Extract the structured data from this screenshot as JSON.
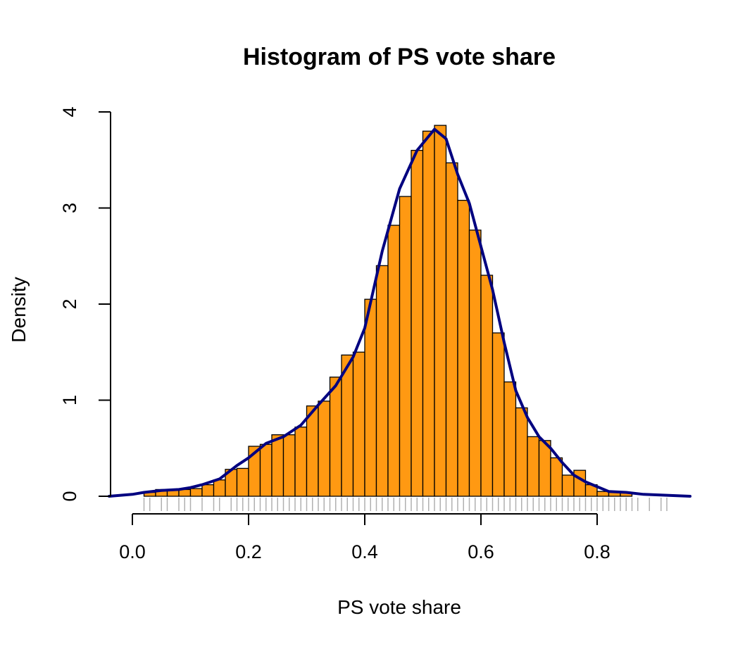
{
  "chart_data": {
    "type": "bar",
    "title": "Histogram of PS vote share",
    "xlabel": "PS vote share",
    "ylabel": "Density",
    "xlim": [
      -0.04,
      0.96
    ],
    "ylim": [
      0,
      4
    ],
    "xticks": [
      0.0,
      0.2,
      0.4,
      0.6,
      0.8
    ],
    "xtick_labels": [
      "0.0",
      "0.2",
      "0.4",
      "0.6",
      "0.8"
    ],
    "yticks": [
      0,
      1,
      2,
      3,
      4
    ],
    "ytick_labels": [
      "0",
      "1",
      "2",
      "3",
      "4"
    ],
    "bin_width": 0.02,
    "bin_start": 0.02,
    "values": [
      0.04,
      0.07,
      0.06,
      0.07,
      0.08,
      0.12,
      0.17,
      0.28,
      0.29,
      0.52,
      0.54,
      0.64,
      0.64,
      0.72,
      0.94,
      0.99,
      1.24,
      1.47,
      1.5,
      2.05,
      2.4,
      2.82,
      3.12,
      3.6,
      3.8,
      3.86,
      3.47,
      3.08,
      2.77,
      2.3,
      1.7,
      1.19,
      0.92,
      0.62,
      0.58,
      0.4,
      0.22,
      0.27,
      0.12,
      0.05,
      0.05,
      0.04
    ],
    "density_curve": {
      "x": [
        -0.04,
        0.0,
        0.02,
        0.05,
        0.08,
        0.1,
        0.12,
        0.15,
        0.18,
        0.2,
        0.23,
        0.26,
        0.29,
        0.32,
        0.35,
        0.38,
        0.4,
        0.43,
        0.46,
        0.49,
        0.52,
        0.54,
        0.56,
        0.58,
        0.6,
        0.62,
        0.64,
        0.66,
        0.68,
        0.7,
        0.72,
        0.74,
        0.76,
        0.78,
        0.8,
        0.82,
        0.85,
        0.88,
        0.92,
        0.96
      ],
      "y": [
        0.0,
        0.02,
        0.04,
        0.06,
        0.07,
        0.09,
        0.12,
        0.18,
        0.32,
        0.4,
        0.55,
        0.62,
        0.74,
        0.95,
        1.15,
        1.45,
        1.75,
        2.55,
        3.2,
        3.6,
        3.82,
        3.72,
        3.35,
        3.05,
        2.6,
        2.15,
        1.6,
        1.1,
        0.82,
        0.62,
        0.5,
        0.35,
        0.22,
        0.15,
        0.1,
        0.05,
        0.04,
        0.02,
        0.01,
        0.0
      ]
    },
    "rug": [
      0.02,
      0.03,
      0.05,
      0.06,
      0.08,
      0.09,
      0.1,
      0.12,
      0.14,
      0.15,
      0.17,
      0.18,
      0.19,
      0.2,
      0.21,
      0.22,
      0.23,
      0.24,
      0.25,
      0.26,
      0.27,
      0.28,
      0.29,
      0.3,
      0.31,
      0.32,
      0.33,
      0.34,
      0.35,
      0.36,
      0.37,
      0.38,
      0.39,
      0.4,
      0.41,
      0.42,
      0.43,
      0.44,
      0.45,
      0.46,
      0.47,
      0.48,
      0.49,
      0.5,
      0.51,
      0.52,
      0.53,
      0.54,
      0.55,
      0.56,
      0.57,
      0.58,
      0.59,
      0.6,
      0.61,
      0.62,
      0.63,
      0.64,
      0.65,
      0.66,
      0.67,
      0.68,
      0.69,
      0.7,
      0.71,
      0.72,
      0.73,
      0.74,
      0.75,
      0.76,
      0.77,
      0.78,
      0.79,
      0.8,
      0.81,
      0.82,
      0.83,
      0.84,
      0.85,
      0.86,
      0.87,
      0.89,
      0.91,
      0.92
    ],
    "colors": {
      "bar_fill": "#FF9912",
      "bar_stroke": "#000000",
      "density_line": "#000080",
      "rug": "#B0B0B0",
      "axis": "#000000"
    },
    "grid": false,
    "legend": "none"
  }
}
